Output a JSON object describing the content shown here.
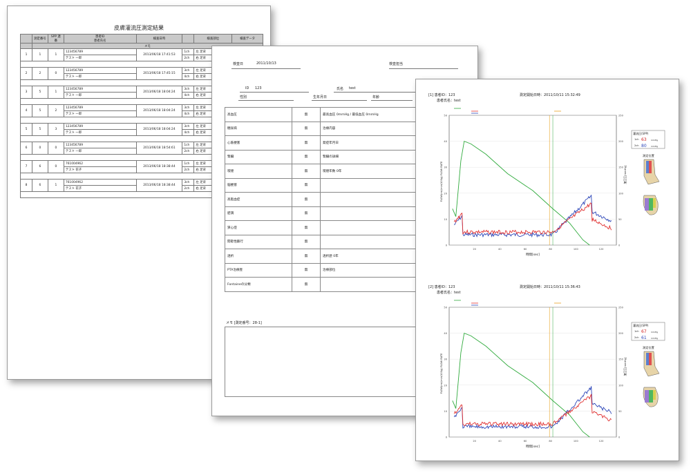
{
  "sheet1": {
    "title": "皮膚灌流圧測定結果",
    "headers": {
      "measure_no": "測定番号",
      "record_no": "SPP 連番",
      "patient_id": "患者ID",
      "patient_name": "患者氏名",
      "exam_datetime": "検査日時",
      "exam_site": "検査部位",
      "exam_data": "検査データ",
      "memo": "メモ"
    },
    "rows": [
      {
        "index": "1",
        "no": "1",
        "seq": "1",
        "id": "123456789",
        "name": "テスト 一郎",
        "date": "2013/06/18 17:41:53",
        "s1": "1ch",
        "s1v": "左 足背",
        "s2": "2ch",
        "s2v": "右 足背"
      },
      {
        "index": "2",
        "no": "2",
        "seq": "0",
        "id": "123456789",
        "name": "テスト 一郎",
        "date": "2013/06/18 17:45:15",
        "s1": "3ch",
        "s1v": "左 足背",
        "s2": "4ch",
        "s2v": "右 足背"
      },
      {
        "index": "3",
        "no": "5",
        "seq": "1",
        "id": "123456789",
        "name": "テスト 一郎",
        "date": "2013/06/18 18:04:24",
        "s1": "3ch",
        "s1v": "左 足背",
        "s2": "4ch",
        "s2v": "右 足背"
      },
      {
        "index": "4",
        "no": "5",
        "seq": "2",
        "id": "123456789",
        "name": "テスト 一郎",
        "date": "2013/06/18 18:04:24",
        "s1": "3ch",
        "s1v": "左 足背",
        "s2": "4ch",
        "s2v": "右 足背"
      },
      {
        "index": "5",
        "no": "5",
        "seq": "3",
        "id": "123456789",
        "name": "テスト 一郎",
        "date": "2013/06/18 18:04:24",
        "s1": "3ch",
        "s1v": "左 足背",
        "s2": "4ch",
        "s2v": "右 足背"
      },
      {
        "index": "6",
        "no": "0",
        "seq": "0",
        "id": "123456789",
        "name": "テスト 一郎",
        "date": "2013/06/18 18:54:61",
        "s1": "1ch",
        "s1v": "左 足背",
        "s2": "2ch",
        "s2v": "右 足背"
      },
      {
        "index": "7",
        "no": "6",
        "seq": "0",
        "id": "761004962",
        "name": "テスト 花子",
        "date": "2013/06/18 18:38:44",
        "s1": "1ch",
        "s1v": "左 足背",
        "s2": "2ch",
        "s2v": "右 足背"
      },
      {
        "index": "8",
        "no": "6",
        "seq": "1",
        "id": "761004962",
        "name": "テスト 花子",
        "date": "2013/06/18 18:38:44",
        "s1": "3ch",
        "s1v": "左 足背",
        "s2": "2ch",
        "s2v": "右 足背"
      }
    ]
  },
  "sheet2": {
    "exam_date_label": "検査日",
    "exam_date": "2011/10/13",
    "examiner_label": "検査担当",
    "id_label": "ID",
    "id_value": "123",
    "name_label": "氏名",
    "name_value": "test",
    "sex_label": "性別",
    "dob_label": "生年月日",
    "age_label": "年齢",
    "questions": [
      {
        "q": "高血圧",
        "a": "無",
        "d": "最高血圧 0mmHg / 最低血圧 0mmHg"
      },
      {
        "q": "糖尿病",
        "a": "無",
        "d": "治療内容"
      },
      {
        "q": "心筋梗塞",
        "a": "無",
        "d": "発症年月日"
      },
      {
        "q": "腎臓",
        "a": "無",
        "d": "腎臓の詳細"
      },
      {
        "q": "喫煙",
        "a": "無",
        "d": "喫煙年数 0年"
      },
      {
        "q": "脳梗塞",
        "a": "無",
        "d": ""
      },
      {
        "q": "高脂血症",
        "a": "無",
        "d": ""
      },
      {
        "q": "肥満",
        "a": "無",
        "d": ""
      },
      {
        "q": "狭心症",
        "a": "無",
        "d": ""
      },
      {
        "q": "間歇性跛行",
        "a": "無",
        "d": ""
      },
      {
        "q": "透析",
        "a": "無",
        "d": "透析歴 0年"
      },
      {
        "q": "PTA治療歴",
        "a": "無",
        "d": "治療部位"
      },
      {
        "q": "Fontaineの分類",
        "a": "無",
        "d": ""
      }
    ],
    "memo_label": "メモ [測定番号：28-1]"
  },
  "sheet3": {
    "charts": [
      {
        "label": "[1] 患者ID：123",
        "name_label": "患者氏名：test",
        "start": "測定開始日時：2011/10/11 15:32:49",
        "spp_title": "灌流圧(SPP)",
        "ch1": "1ch",
        "ch1v": "63",
        "ch2": "2ch",
        "ch2v": "80",
        "unit": "mmHg",
        "site_title": "測定位置",
        "ylabel_left": "FLOW(mL/min/100g) FLOW RATE",
        "ylabel_right": "加圧圧[mmHg]",
        "xlabel": "時間[sec]"
      },
      {
        "label": "[2] 患者ID：123",
        "name_label": "患者氏名：test",
        "start": "測定開始日時：2011/10/11 15:36:43",
        "spp_title": "灌流圧(SPP)",
        "ch1": "1ch",
        "ch1v": "67",
        "ch2": "2ch",
        "ch2v": "61",
        "unit": "mmHg",
        "site_title": "測定位置",
        "ylabel_left": "FLOW(mL/min/100g) FLOW RATE",
        "ylabel_right": "加圧圧[mmHg]",
        "xlabel": "時間[sec]"
      }
    ],
    "xticks": [
      "20",
      "40",
      "60",
      "80",
      "100",
      "120"
    ],
    "yticks_left": [
      "50",
      "40",
      "30",
      "20",
      "10",
      "0"
    ],
    "yticks_right": [
      "250",
      "200",
      "150",
      "100",
      "50",
      "0"
    ],
    "colors": {
      "pressure": "#2faa3c",
      "flow1": "#e03030",
      "flow2": "#2b45b8",
      "marker": "#e8a020"
    }
  }
}
